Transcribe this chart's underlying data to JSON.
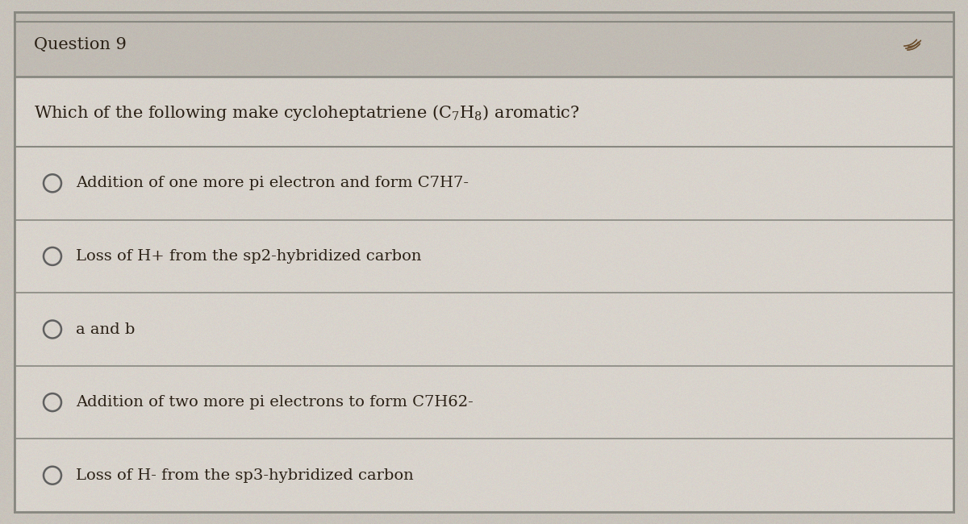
{
  "title": "Question 9",
  "question": "Which of the following make cycloheptatriene (C₇H₈) aromatic?",
  "options": [
    "Addition of one more pi electron and form C7H7-",
    "Loss of H+ from the sp2-hybridized carbon",
    "a and b",
    "Addition of two more pi electrons to form C7H62-",
    "Loss of H- from the sp3-hybridized carbon"
  ],
  "bg_color": "#c8c3bb",
  "box_bg_color": "#d8d3cc",
  "header_bg_color": "#c8c3bb",
  "border_color": "#888880",
  "title_fontsize": 15,
  "question_fontsize": 14,
  "option_fontsize": 13,
  "text_color": "#2a2015"
}
